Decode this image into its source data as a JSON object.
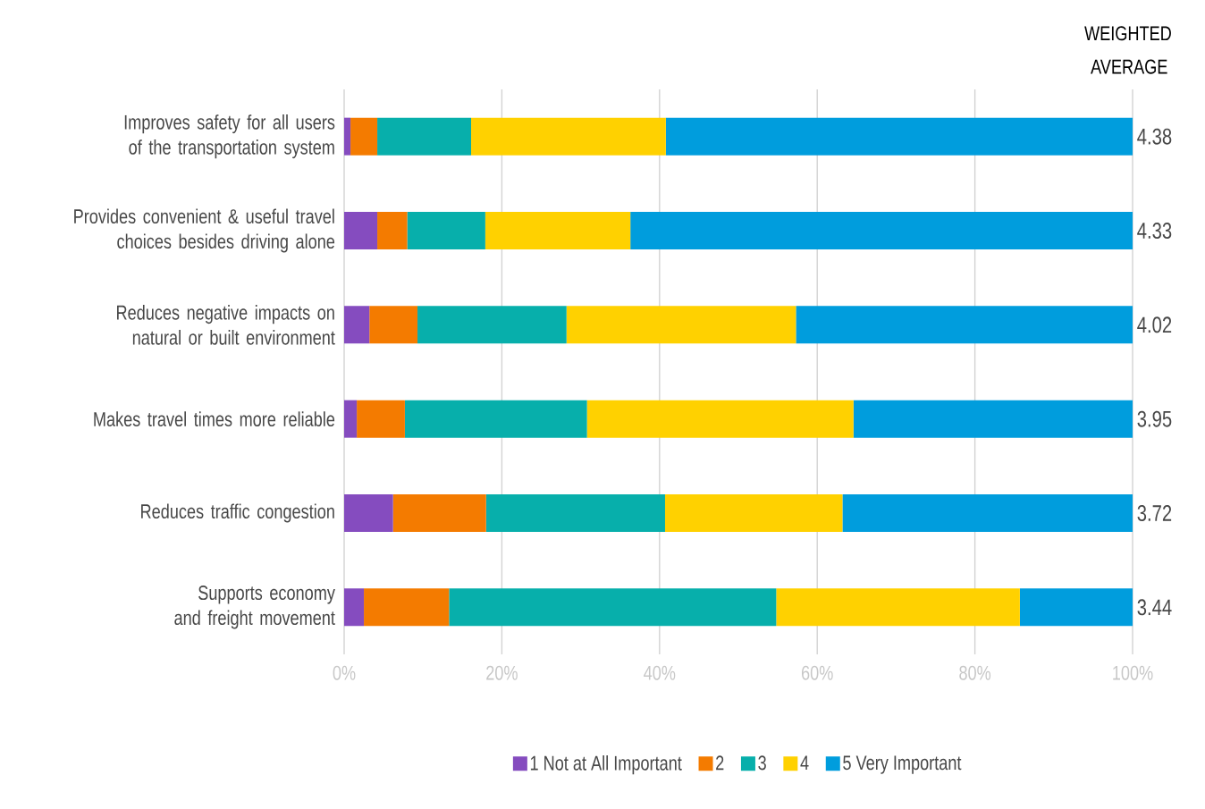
{
  "chart_data": {
    "type": "bar",
    "orientation": "horizontal",
    "stacked": true,
    "categories": [
      "Improves safety for all users of the transportation system",
      "Provides convenient & useful travel choices besides driving alone",
      "Reduces negative impacts on natural or built environment",
      "Makes travel times more reliable",
      "Reduces traffic congestion",
      "Supports economy and freight movement"
    ],
    "series": [
      {
        "name": "1 Not at All Important",
        "color": "#854cbf",
        "values": [
          0.8,
          4.2,
          3.2,
          1.6,
          6.2,
          2.5
        ]
      },
      {
        "name": "2",
        "color": "#f47b00",
        "values": [
          3.4,
          3.8,
          6.1,
          6.1,
          11.8,
          10.8
        ]
      },
      {
        "name": "3",
        "color": "#07afab",
        "values": [
          11.9,
          9.9,
          18.9,
          23.1,
          22.7,
          41.5
        ]
      },
      {
        "name": "4",
        "color": "#ffd100",
        "values": [
          24.7,
          18.4,
          29.1,
          33.8,
          22.5,
          30.9
        ]
      },
      {
        "name": "5 Very Important",
        "color": "#009ddd",
        "values": [
          59.2,
          63.7,
          42.7,
          35.4,
          36.8,
          14.3
        ]
      }
    ],
    "xlim": [
      0,
      100
    ],
    "xticks": [
      {
        "value": 0,
        "label": "0%"
      },
      {
        "value": 20,
        "label": "20%"
      },
      {
        "value": 40,
        "label": "40%"
      },
      {
        "value": 60,
        "label": "60%"
      },
      {
        "value": 80,
        "label": "80%"
      },
      {
        "value": 100,
        "label": "100%"
      }
    ],
    "annotations": [
      "WEIGHTED AVERAGE",
      "4.38",
      "4.33",
      "4.02",
      "3.95",
      "3.72",
      "3.44"
    ],
    "grid": "x",
    "legend": "bottom"
  }
}
